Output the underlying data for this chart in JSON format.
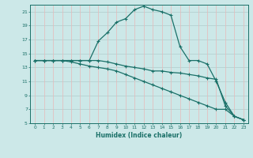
{
  "xlabel": "Humidex (Indice chaleur)",
  "bg_color": "#cce8e8",
  "grid_color_h": "#b0cccc",
  "grid_color_v": "#e8b8b8",
  "line_color": "#1a7068",
  "xlim": [
    -0.5,
    23.5
  ],
  "ylim": [
    5,
    22
  ],
  "xticks": [
    0,
    1,
    2,
    3,
    4,
    5,
    6,
    7,
    8,
    9,
    10,
    11,
    12,
    13,
    14,
    15,
    16,
    17,
    18,
    19,
    20,
    21,
    22,
    23
  ],
  "yticks": [
    5,
    7,
    9,
    11,
    13,
    15,
    17,
    19,
    21
  ],
  "line1_x": [
    0,
    1,
    2,
    3,
    4,
    5,
    6,
    7,
    8,
    9,
    10,
    11,
    12,
    13,
    14,
    15,
    16,
    17,
    18,
    19,
    20,
    21,
    22,
    23
  ],
  "line1_y": [
    14.0,
    14.0,
    14.0,
    14.0,
    14.0,
    14.0,
    14.0,
    16.8,
    18.0,
    19.5,
    20.0,
    21.3,
    21.8,
    21.3,
    21.0,
    20.5,
    16.0,
    14.0,
    14.0,
    13.5,
    11.0,
    8.0,
    6.0,
    5.5
  ],
  "line2_x": [
    0,
    1,
    2,
    3,
    4,
    5,
    6,
    7,
    8,
    9,
    10,
    11,
    12,
    13,
    14,
    15,
    16,
    17,
    18,
    19,
    20,
    21,
    22,
    23
  ],
  "line2_y": [
    14.0,
    14.0,
    14.0,
    14.0,
    14.0,
    14.0,
    14.0,
    14.0,
    13.8,
    13.5,
    13.2,
    13.0,
    12.8,
    12.5,
    12.5,
    12.3,
    12.2,
    12.0,
    11.8,
    11.5,
    11.3,
    7.5,
    6.0,
    5.5
  ],
  "line3_x": [
    0,
    1,
    2,
    3,
    4,
    5,
    6,
    7,
    8,
    9,
    10,
    11,
    12,
    13,
    14,
    15,
    16,
    17,
    18,
    19,
    20,
    21,
    22,
    23
  ],
  "line3_y": [
    14.0,
    14.0,
    14.0,
    14.0,
    13.8,
    13.5,
    13.2,
    13.0,
    12.8,
    12.5,
    12.0,
    11.5,
    11.0,
    10.5,
    10.0,
    9.5,
    9.0,
    8.5,
    8.0,
    7.5,
    7.0,
    7.0,
    6.0,
    5.5
  ]
}
